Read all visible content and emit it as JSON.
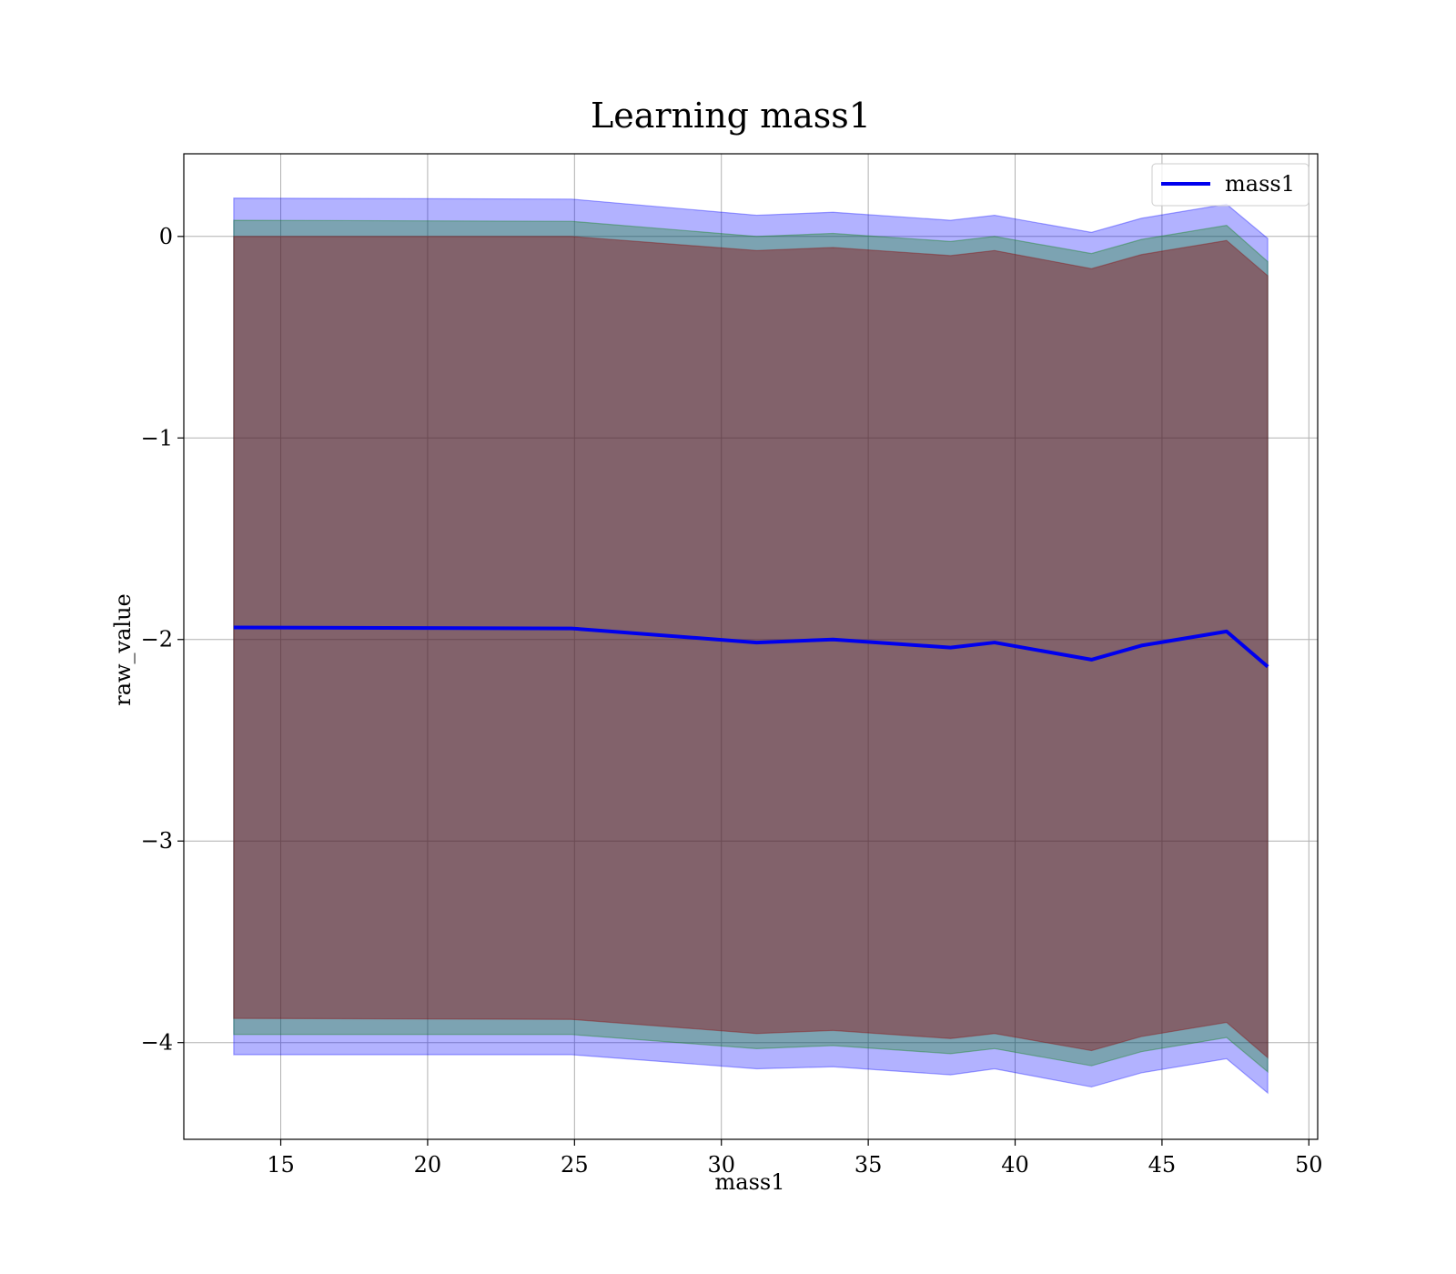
{
  "chart_data": {
    "type": "line",
    "title": "Learning mass1",
    "xlabel": "mass1",
    "ylabel": "raw_value",
    "xlim": [
      11.7,
      50.3
    ],
    "ylim": [
      -4.48,
      0.41
    ],
    "xticks": [
      15,
      20,
      25,
      30,
      35,
      40,
      45,
      50
    ],
    "xtick_labels": [
      "15",
      "20",
      "25",
      "30",
      "35",
      "40",
      "45",
      "50"
    ],
    "yticks": [
      0,
      -1,
      -2,
      -3,
      -4
    ],
    "ytick_labels": [
      "0",
      "−1",
      "−2",
      "−3",
      "−4"
    ],
    "grid": true,
    "legend": {
      "position": "top-right",
      "entries": [
        "mass1"
      ]
    },
    "x": [
      13.4,
      24.9,
      31.2,
      33.8,
      37.8,
      39.3,
      42.6,
      44.3,
      47.2,
      48.6
    ],
    "series": [
      {
        "name": "mass1",
        "color": "#0000ee",
        "values": [
          -1.94,
          -1.945,
          -2.015,
          -2.0,
          -2.04,
          -2.015,
          -2.1,
          -2.03,
          -1.96,
          -2.135
        ]
      }
    ],
    "bands": [
      {
        "color": "#0000ff",
        "opacity": 0.3,
        "upper": [
          0.19,
          0.185,
          0.105,
          0.12,
          0.08,
          0.105,
          0.02,
          0.09,
          0.16,
          -0.01
        ],
        "lower": [
          -4.06,
          -4.06,
          -4.13,
          -4.12,
          -4.16,
          -4.13,
          -4.22,
          -4.15,
          -4.08,
          -4.25
        ]
      },
      {
        "color": "#008000",
        "opacity": 0.3,
        "upper": [
          0.08,
          0.075,
          0.0,
          0.015,
          -0.025,
          0.0,
          -0.085,
          -0.015,
          0.055,
          -0.125
        ],
        "lower": [
          -3.96,
          -3.96,
          -4.03,
          -4.015,
          -4.055,
          -4.03,
          -4.115,
          -4.045,
          -3.975,
          -4.145
        ]
      },
      {
        "color": "#8b0000",
        "opacity": 0.4,
        "upper": [
          0.0,
          0.0,
          -0.07,
          -0.055,
          -0.095,
          -0.07,
          -0.16,
          -0.09,
          -0.02,
          -0.195
        ],
        "lower": [
          -3.88,
          -3.885,
          -3.955,
          -3.94,
          -3.98,
          -3.955,
          -4.04,
          -3.97,
          -3.9,
          -4.075
        ]
      }
    ]
  }
}
